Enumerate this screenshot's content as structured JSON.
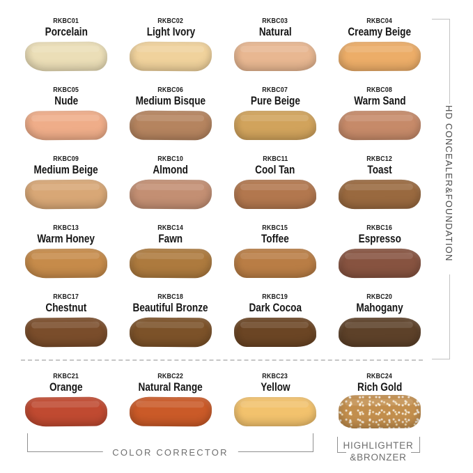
{
  "labels": {
    "side": "HD CONCEALER&FOUNDATION",
    "color_corrector": "COLOR CORRECTOR",
    "highlighter_line1": "HIGHLIGHTER",
    "highlighter_line2": "&BRONZER"
  },
  "palette": {
    "text_dark": "#1c1c1c",
    "text_muted": "#6e6e6e",
    "side_bracket_line": "#c2c2c2",
    "bottom_bracket_line": "#8f8f8f",
    "dashed_divider": "#c6c6c6",
    "background": "#ffffff"
  },
  "chart_data": {
    "type": "table",
    "title": "HD CONCEALER&FOUNDATION shade chart",
    "columns": [
      "code",
      "name",
      "color_hex",
      "group"
    ],
    "groups": [
      {
        "label": "HD CONCEALER&FOUNDATION",
        "codes": [
          "RKBC01",
          "RKBC02",
          "RKBC03",
          "RKBC04",
          "RKBC05",
          "RKBC06",
          "RKBC07",
          "RKBC08",
          "RKBC09",
          "RKBC10",
          "RKBC11",
          "RKBC12",
          "RKBC13",
          "RKBC14",
          "RKBC15",
          "RKBC16",
          "RKBC17",
          "RKBC18",
          "RKBC19",
          "RKBC20"
        ]
      },
      {
        "label": "COLOR CORRECTOR",
        "codes": [
          "RKBC21",
          "RKBC22",
          "RKBC23"
        ]
      },
      {
        "label": "HIGHLIGHTER &BRONZER",
        "codes": [
          "RKBC24"
        ]
      }
    ],
    "swatches": [
      {
        "code": "RKBC01",
        "name": "Porcelain",
        "color": "#EBDEB7"
      },
      {
        "code": "RKBC02",
        "name": "Light Ivory",
        "color": "#F0D29C"
      },
      {
        "code": "RKBC03",
        "name": "Natural",
        "color": "#E8B791"
      },
      {
        "code": "RKBC04",
        "name": "Creamy Beige",
        "color": "#ECAD68"
      },
      {
        "code": "RKBC05",
        "name": "Nude",
        "color": "#EFAD89"
      },
      {
        "code": "RKBC06",
        "name": "Medium Bisque",
        "color": "#B5845F"
      },
      {
        "code": "RKBC07",
        "name": "Pure Beige",
        "color": "#D1A35C"
      },
      {
        "code": "RKBC08",
        "name": "Warm Sand",
        "color": "#C68A69"
      },
      {
        "code": "RKBC09",
        "name": "Medium Beige",
        "color": "#D8A776"
      },
      {
        "code": "RKBC10",
        "name": "Almond",
        "color": "#C38F73"
      },
      {
        "code": "RKBC11",
        "name": "Cool Tan",
        "color": "#B2774E"
      },
      {
        "code": "RKBC12",
        "name": "Toast",
        "color": "#99693F"
      },
      {
        "code": "RKBC13",
        "name": "Warm Honey",
        "color": "#C68B4A"
      },
      {
        "code": "RKBC14",
        "name": "Fawn",
        "color": "#AD7A3E"
      },
      {
        "code": "RKBC15",
        "name": "Toffee",
        "color": "#B97D45"
      },
      {
        "code": "RKBC16",
        "name": "Espresso",
        "color": "#875340"
      },
      {
        "code": "RKBC17",
        "name": "Chestnut",
        "color": "#7A4D2B"
      },
      {
        "code": "RKBC18",
        "name": "Beautiful Bronze",
        "color": "#7C5229"
      },
      {
        "code": "RKBC19",
        "name": "Dark Cocoa",
        "color": "#6B4524"
      },
      {
        "code": "RKBC20",
        "name": "Mahogany",
        "color": "#5D4129"
      },
      {
        "code": "RKBC21",
        "name": "Orange",
        "color": "#C04A31"
      },
      {
        "code": "RKBC22",
        "name": "Natural Range",
        "color": "#CA5A28"
      },
      {
        "code": "RKBC23",
        "name": "Yellow",
        "color": "#F2C26D"
      },
      {
        "code": "RKBC24",
        "name": "Rich Gold",
        "color": "#C28E4D"
      }
    ]
  }
}
